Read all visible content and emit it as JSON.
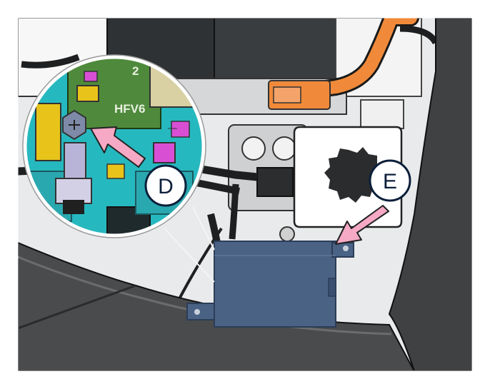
{
  "illustration": {
    "callouts": [
      {
        "id": "D",
        "label": "D"
      },
      {
        "id": "E",
        "label": "E"
      }
    ],
    "inset_component_label": "HFV6",
    "inset_digit": "2",
    "colors": {
      "module_blue": "#4a6284",
      "arrow_pink": "#f5a9c4",
      "cable_orange": "#f08a3a",
      "inset_cyan": "#29c2c9",
      "inset_green": "#4f8a3c",
      "inset_yellow": "#e8c31a",
      "inset_magenta": "#d94fd4",
      "panel_gray": "#3f4142"
    }
  }
}
